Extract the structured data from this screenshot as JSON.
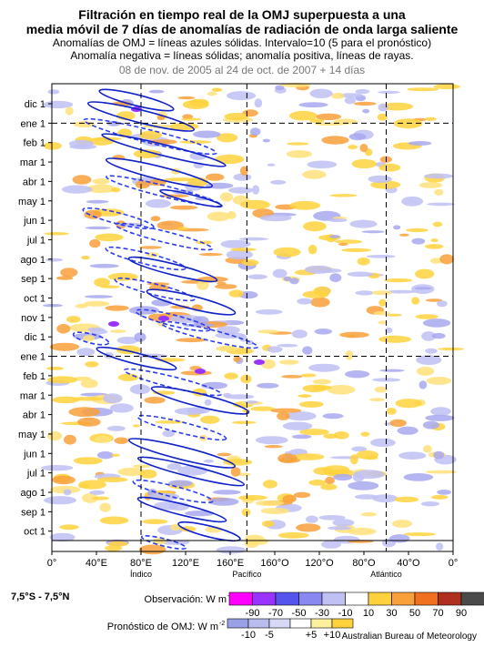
{
  "title": {
    "line1": "Filtración en tiempo real de la OMJ superpuesta a una",
    "line2": "media móvil de 7 días de anomalías de radiación de onda larga saliente",
    "line3": "Anomalías de OMJ = líneas azules sólidas. Intervalo=10 (5 para el pronóstico)",
    "line4": "Anomalía negativa = líneas sólidas; anomalía positiva, líneas de rayas.",
    "date_range": "08 de nov. de 2005 al 24 de oct. de 2007 + 14 días"
  },
  "chart_data": {
    "type": "heatmap",
    "y_ticks": [
      "dic 1",
      "ene 1",
      "feb 1",
      "mar 1",
      "abr 1",
      "may 1",
      "jun 1",
      "jul 1",
      "ago 1",
      "sep 1",
      "oct 1",
      "nov 1",
      "dic 1",
      "ene 1",
      "feb 1",
      "mar 1",
      "abr 1",
      "may 1",
      "jun 1",
      "jul 1",
      "ago 1",
      "sep 1",
      "oct 1"
    ],
    "x_ticks": [
      "0°",
      "40°E",
      "80°E",
      "120°E",
      "160°E",
      "160°O",
      "120°O",
      "80°O",
      "40°O",
      "0°"
    ],
    "x_tick_lon": [
      0,
      40,
      80,
      120,
      160,
      200,
      240,
      280,
      320,
      360
    ],
    "region_labels": [
      {
        "text": "Índico",
        "lon": 80
      },
      {
        "text": "Pacífico",
        "lon": 175
      },
      {
        "text": "Atlántico",
        "lon": 300
      }
    ],
    "dashed_vertical_lon": [
      80,
      175,
      300
    ],
    "dashed_horizontal_at": [
      "ene 1",
      "ene 1"
    ],
    "observation_legend": {
      "label": "Observación: W m",
      "label_sup": "-2",
      "values": [
        "-90",
        "-70",
        "-50",
        "-30",
        "-10",
        "10",
        "30",
        "50",
        "70",
        "90"
      ],
      "colors": [
        "#ff00ff",
        "#9933ff",
        "#5555ee",
        "#8888f0",
        "#c0c0f4",
        "#ffffff",
        "#ffd23d",
        "#f8a03a",
        "#f07020",
        "#b03020",
        "#4a4a4a"
      ]
    },
    "forecast_legend": {
      "label": "Pronóstico de OMJ: W m",
      "label_sup": "-2",
      "values": [
        "-10",
        "-5",
        "+5",
        "+10"
      ],
      "colors": [
        "#9aa0e6",
        "#b8bcef",
        "#d6d8f6",
        "#ffffff",
        "#fff0a0",
        "#ffd23d"
      ]
    }
  },
  "region_range": "7,5°S - 7,5°N",
  "credit": "Australian Bureau of Meteorology"
}
